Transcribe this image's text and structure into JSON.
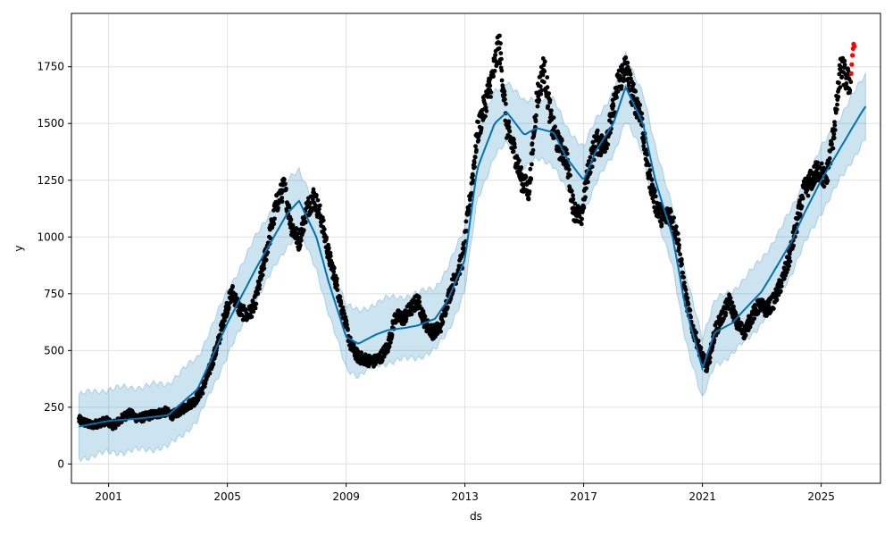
{
  "chart_data": {
    "type": "line",
    "title": "",
    "xlabel": "ds",
    "ylabel": "y",
    "grid": true,
    "legend": "none",
    "x_ticks": [
      "2001",
      "2005",
      "2009",
      "2013",
      "2017",
      "2021",
      "2025"
    ],
    "y_ticks": [
      "0",
      "250",
      "500",
      "750",
      "1000",
      "1250",
      "1500",
      "1750"
    ],
    "x_range": [
      "1999-10-01",
      "2026-12-31"
    ],
    "y_range": [
      -85,
      1985
    ],
    "colors": {
      "observed": "#000000",
      "forecast_line": "#0072B2",
      "uncertainty_band": "#0072B2",
      "recent_points": "#ff0000",
      "grid": "#e0e0e0"
    },
    "observed_path": [
      [
        "2000-01-01",
        195
      ],
      [
        "2000-06-01",
        170
      ],
      [
        "2000-12-01",
        190
      ],
      [
        "2001-03-01",
        170
      ],
      [
        "2001-06-01",
        195
      ],
      [
        "2001-09-01",
        225
      ],
      [
        "2002-01-01",
        200
      ],
      [
        "2002-06-01",
        215
      ],
      [
        "2002-12-01",
        230
      ],
      [
        "2003-03-01",
        215
      ],
      [
        "2003-06-01",
        235
      ],
      [
        "2003-12-01",
        280
      ],
      [
        "2004-03-01",
        330
      ],
      [
        "2004-06-01",
        420
      ],
      [
        "2004-09-01",
        520
      ],
      [
        "2004-12-01",
        660
      ],
      [
        "2005-03-01",
        760
      ],
      [
        "2005-06-01",
        680
      ],
      [
        "2005-09-01",
        650
      ],
      [
        "2005-12-01",
        700
      ],
      [
        "2006-03-01",
        840
      ],
      [
        "2006-06-01",
        1000
      ],
      [
        "2006-09-01",
        1150
      ],
      [
        "2006-12-01",
        1220
      ],
      [
        "2007-03-01",
        1050
      ],
      [
        "2007-06-01",
        980
      ],
      [
        "2007-09-01",
        1120
      ],
      [
        "2007-12-01",
        1180
      ],
      [
        "2008-03-01",
        1080
      ],
      [
        "2008-06-01",
        920
      ],
      [
        "2008-09-01",
        800
      ],
      [
        "2008-12-01",
        650
      ],
      [
        "2009-03-01",
        520
      ],
      [
        "2009-06-01",
        470
      ],
      [
        "2009-12-01",
        450
      ],
      [
        "2010-03-01",
        470
      ],
      [
        "2010-06-01",
        520
      ],
      [
        "2010-09-01",
        650
      ],
      [
        "2010-12-01",
        640
      ],
      [
        "2011-03-01",
        680
      ],
      [
        "2011-06-01",
        720
      ],
      [
        "2011-09-01",
        620
      ],
      [
        "2011-12-01",
        580
      ],
      [
        "2012-03-01",
        600
      ],
      [
        "2012-06-01",
        720
      ],
      [
        "2012-09-01",
        820
      ],
      [
        "2012-12-01",
        900
      ],
      [
        "2013-03-01",
        1150
      ],
      [
        "2013-06-01",
        1450
      ],
      [
        "2013-09-01",
        1580
      ],
      [
        "2013-12-01",
        1700
      ],
      [
        "2014-03-01",
        1850
      ],
      [
        "2014-06-01",
        1480
      ],
      [
        "2014-09-01",
        1380
      ],
      [
        "2014-12-01",
        1250
      ],
      [
        "2015-03-01",
        1200
      ],
      [
        "2015-06-01",
        1600
      ],
      [
        "2015-09-01",
        1750
      ],
      [
        "2015-12-01",
        1500
      ],
      [
        "2016-03-01",
        1400
      ],
      [
        "2016-06-01",
        1350
      ],
      [
        "2016-09-01",
        1120
      ],
      [
        "2016-12-01",
        1080
      ],
      [
        "2017-03-01",
        1300
      ],
      [
        "2017-06-01",
        1420
      ],
      [
        "2017-09-01",
        1400
      ],
      [
        "2017-12-01",
        1500
      ],
      [
        "2018-03-01",
        1680
      ],
      [
        "2018-06-01",
        1750
      ],
      [
        "2018-09-01",
        1620
      ],
      [
        "2018-12-01",
        1550
      ],
      [
        "2019-03-01",
        1300
      ],
      [
        "2019-06-01",
        1150
      ],
      [
        "2019-09-01",
        1080
      ],
      [
        "2019-12-01",
        1100
      ],
      [
        "2020-03-01",
        1000
      ],
      [
        "2020-06-01",
        750
      ],
      [
        "2020-09-01",
        600
      ],
      [
        "2020-12-01",
        500
      ],
      [
        "2021-03-01",
        420
      ],
      [
        "2021-06-01",
        580
      ],
      [
        "2021-09-01",
        650
      ],
      [
        "2021-12-01",
        720
      ],
      [
        "2022-03-01",
        620
      ],
      [
        "2022-06-01",
        580
      ],
      [
        "2022-09-01",
        650
      ],
      [
        "2022-12-01",
        700
      ],
      [
        "2023-03-01",
        680
      ],
      [
        "2023-06-01",
        720
      ],
      [
        "2023-09-01",
        800
      ],
      [
        "2023-12-01",
        900
      ],
      [
        "2024-03-01",
        1050
      ],
      [
        "2024-06-01",
        1200
      ],
      [
        "2024-09-01",
        1250
      ],
      [
        "2024-12-01",
        1300
      ],
      [
        "2025-03-01",
        1250
      ],
      [
        "2025-06-01",
        1450
      ],
      [
        "2025-09-01",
        1750
      ],
      [
        "2025-12-01",
        1680
      ],
      [
        "2026-01-01",
        1700
      ]
    ],
    "recent_points": [
      [
        "2026-01-05",
        1720
      ],
      [
        "2026-01-12",
        1760
      ],
      [
        "2026-01-20",
        1800
      ],
      [
        "2026-01-28",
        1830
      ],
      [
        "2026-02-04",
        1850
      ],
      [
        "2026-02-12",
        1840
      ]
    ],
    "forecast": [
      [
        "2000-01-01",
        165
      ],
      [
        "2001-01-01",
        190
      ],
      [
        "2002-01-01",
        200
      ],
      [
        "2003-01-01",
        215
      ],
      [
        "2004-01-01",
        330
      ],
      [
        "2005-01-01",
        620
      ],
      [
        "2006-01-01",
        870
      ],
      [
        "2007-01-01",
        1100
      ],
      [
        "2007-06-01",
        1160
      ],
      [
        "2008-01-01",
        1000
      ],
      [
        "2008-06-01",
        800
      ],
      [
        "2009-01-01",
        560
      ],
      [
        "2009-06-01",
        530
      ],
      [
        "2010-01-01",
        570
      ],
      [
        "2010-06-01",
        590
      ],
      [
        "2011-01-01",
        600
      ],
      [
        "2011-06-01",
        610
      ],
      [
        "2012-01-01",
        640
      ],
      [
        "2012-06-01",
        720
      ],
      [
        "2013-01-01",
        900
      ],
      [
        "2013-06-01",
        1300
      ],
      [
        "2014-01-01",
        1500
      ],
      [
        "2014-06-01",
        1550
      ],
      [
        "2015-01-01",
        1450
      ],
      [
        "2015-06-01",
        1480
      ],
      [
        "2016-01-01",
        1460
      ],
      [
        "2016-06-01",
        1350
      ],
      [
        "2017-01-01",
        1250
      ],
      [
        "2017-06-01",
        1380
      ],
      [
        "2018-01-01",
        1500
      ],
      [
        "2018-06-01",
        1660
      ],
      [
        "2019-01-01",
        1500
      ],
      [
        "2019-06-01",
        1250
      ],
      [
        "2020-01-01",
        1000
      ],
      [
        "2020-06-01",
        700
      ],
      [
        "2021-01-01",
        420
      ],
      [
        "2021-06-01",
        580
      ],
      [
        "2022-01-01",
        620
      ],
      [
        "2022-06-01",
        680
      ],
      [
        "2023-01-01",
        760
      ],
      [
        "2023-06-01",
        850
      ],
      [
        "2024-01-01",
        980
      ],
      [
        "2024-06-01",
        1100
      ],
      [
        "2025-01-01",
        1250
      ],
      [
        "2025-06-01",
        1340
      ],
      [
        "2026-01-01",
        1470
      ],
      [
        "2026-06-01",
        1560
      ],
      [
        "2026-07-01",
        1575
      ]
    ],
    "band_width": 140
  }
}
